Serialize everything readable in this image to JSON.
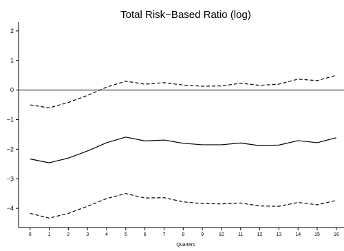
{
  "chart_data": {
    "type": "line",
    "title": "Total Risk−Based Ratio (log)",
    "xlabel": "Quarters",
    "ylabel": "",
    "x": [
      0,
      1,
      2,
      3,
      4,
      5,
      6,
      7,
      8,
      9,
      10,
      11,
      12,
      13,
      14,
      15,
      16
    ],
    "x_ticks": [
      "0",
      "1",
      "2",
      "3",
      "4",
      "5",
      "6",
      "7",
      "8",
      "9",
      "10",
      "11",
      "12",
      "13",
      "14",
      "15",
      "16"
    ],
    "y_ticks": [
      "−4",
      "−3",
      "−2",
      "−1",
      "0",
      "1",
      "2"
    ],
    "y_tick_values": [
      -4,
      -3,
      -2,
      -1,
      0,
      1,
      2
    ],
    "xlim": [
      -0.6,
      16.4
    ],
    "ylim": [
      -4.65,
      2.3
    ],
    "reference_line_y": 0,
    "grid": false,
    "series": [
      {
        "style": "solid",
        "values": [
          -2.33,
          -2.46,
          -2.3,
          -2.06,
          -1.78,
          -1.59,
          -1.72,
          -1.69,
          -1.8,
          -1.85,
          -1.85,
          -1.79,
          -1.88,
          -1.86,
          -1.71,
          -1.78,
          -1.61
        ]
      },
      {
        "style": "dashed",
        "values": [
          -0.5,
          -0.6,
          -0.42,
          -0.18,
          0.1,
          0.3,
          0.2,
          0.25,
          0.17,
          0.13,
          0.14,
          0.23,
          0.16,
          0.2,
          0.37,
          0.32,
          0.5
        ]
      },
      {
        "style": "dashed",
        "values": [
          -4.17,
          -4.33,
          -4.17,
          -3.93,
          -3.67,
          -3.5,
          -3.65,
          -3.64,
          -3.78,
          -3.84,
          -3.85,
          -3.82,
          -3.92,
          -3.93,
          -3.8,
          -3.88,
          -3.73
        ]
      }
    ],
    "colors": {
      "line": "#000000",
      "axis": "#000000",
      "background": "#ffffff"
    }
  }
}
